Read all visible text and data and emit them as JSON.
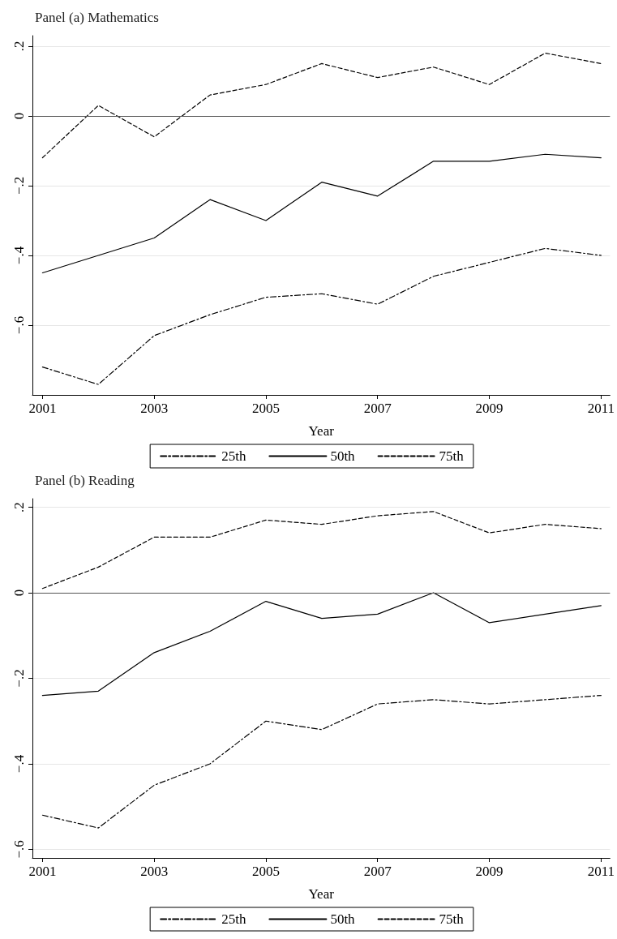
{
  "chart_data": [
    {
      "type": "line",
      "title": "Panel (a) Mathematics",
      "xlabel": "Year",
      "x": [
        2001,
        2002,
        2003,
        2004,
        2005,
        2006,
        2007,
        2008,
        2009,
        2010,
        2011
      ],
      "series": [
        {
          "name": "25th",
          "color": "#000000",
          "line_style": "dashdot",
          "values": [
            -0.72,
            -0.77,
            -0.63,
            -0.57,
            -0.52,
            -0.51,
            -0.54,
            -0.46,
            -0.42,
            -0.38,
            -0.4
          ]
        },
        {
          "name": "50th",
          "color": "#000000",
          "line_style": "solid",
          "values": [
            -0.45,
            -0.4,
            -0.35,
            -0.24,
            -0.3,
            -0.19,
            -0.23,
            -0.13,
            -0.13,
            -0.11,
            -0.12
          ]
        },
        {
          "name": "75th",
          "color": "#000000",
          "line_style": "dashed",
          "values": [
            -0.12,
            0.03,
            -0.06,
            0.06,
            0.09,
            0.15,
            0.11,
            0.14,
            0.09,
            0.18,
            0.15
          ]
        }
      ],
      "xlim": [
        2000.82,
        2011.16
      ],
      "xticks": [
        2001,
        2003,
        2005,
        2007,
        2009,
        2011
      ],
      "ylim": [
        -0.8,
        0.23
      ],
      "yticks": [
        {
          "value": 0.2,
          "label": ".2"
        },
        {
          "value": 0,
          "label": "0"
        },
        {
          "value": -0.2,
          "label": "−.2"
        },
        {
          "value": -0.4,
          "label": "−.4"
        },
        {
          "value": -0.6,
          "label": "−.6"
        }
      ],
      "ref_lines": [
        {
          "axis": "y",
          "value": 0,
          "color": "#555555"
        }
      ],
      "grid": "y",
      "legend": "bottom",
      "marker": "none"
    },
    {
      "type": "line",
      "title": "Panel (b) Reading",
      "xlabel": "Year",
      "x": [
        2001,
        2002,
        2003,
        2004,
        2005,
        2006,
        2007,
        2008,
        2009,
        2010,
        2011
      ],
      "series": [
        {
          "name": "25th",
          "color": "#000000",
          "line_style": "dashdot",
          "values": [
            -0.52,
            -0.55,
            -0.45,
            -0.4,
            -0.3,
            -0.32,
            -0.26,
            -0.25,
            -0.26,
            -0.25,
            -0.24
          ]
        },
        {
          "name": "50th",
          "color": "#000000",
          "line_style": "solid",
          "values": [
            -0.24,
            -0.23,
            -0.14,
            -0.09,
            -0.02,
            -0.06,
            -0.05,
            0,
            -0.07,
            -0.05,
            -0.03
          ]
        },
        {
          "name": "75th",
          "color": "#000000",
          "line_style": "dashed",
          "values": [
            0.01,
            0.06,
            0.13,
            0.13,
            0.17,
            0.16,
            0.18,
            0.19,
            0.14,
            0.16,
            0.15
          ]
        }
      ],
      "xlim": [
        2000.82,
        2011.16
      ],
      "xticks": [
        2001,
        2003,
        2005,
        2007,
        2009,
        2011
      ],
      "ylim": [
        -0.62,
        0.22
      ],
      "yticks": [
        {
          "value": 0.2,
          "label": ".2"
        },
        {
          "value": 0,
          "label": "0"
        },
        {
          "value": -0.2,
          "label": "−.2"
        },
        {
          "value": -0.4,
          "label": "−.4"
        },
        {
          "value": -0.6,
          "label": "−.6"
        }
      ],
      "ref_lines": [
        {
          "axis": "y",
          "value": 0,
          "color": "#555555"
        }
      ],
      "grid": "y",
      "legend": "bottom",
      "marker": "none"
    }
  ]
}
